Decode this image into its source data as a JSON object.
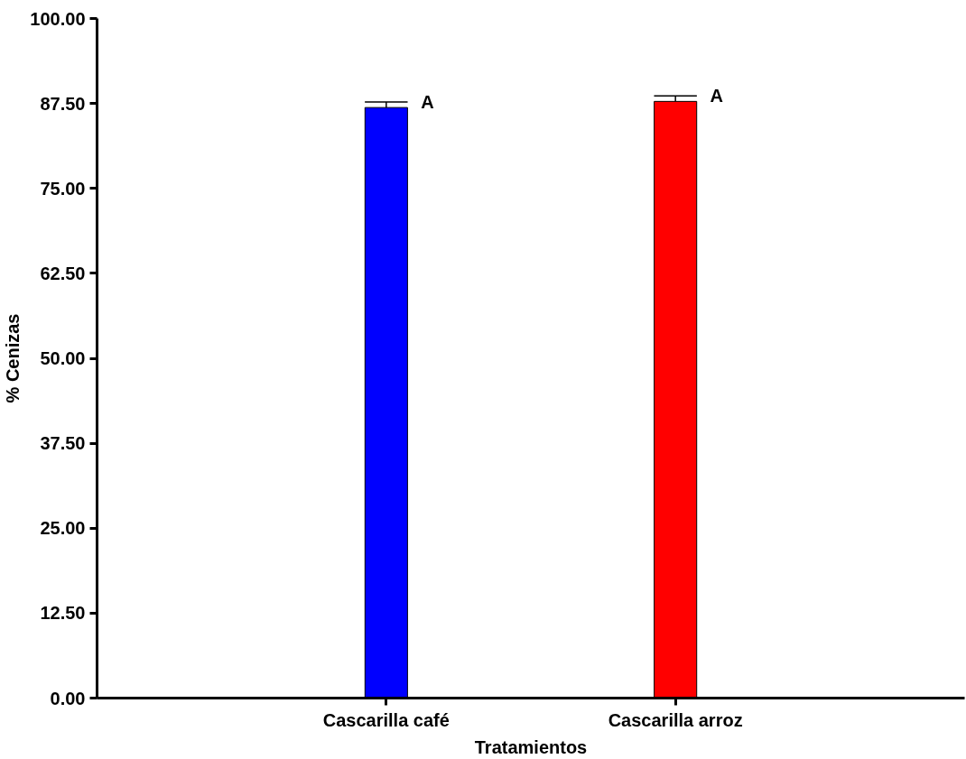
{
  "chart_data": {
    "type": "bar",
    "xlabel": "Tratamientos",
    "ylabel": "% Cenizas",
    "categories": [
      "Cascarilla café",
      "Cascarilla arroz"
    ],
    "values": [
      86.9,
      87.8
    ],
    "colors": [
      "#0000ff",
      "#ff0000"
    ],
    "errors": [
      0.8,
      0.8
    ],
    "ylim": [
      0,
      100
    ],
    "yticks": [
      {
        "value": 0,
        "label": "0.00"
      },
      {
        "value": 12.5,
        "label": "12.50"
      },
      {
        "value": 25,
        "label": "25.00"
      },
      {
        "value": 37.5,
        "label": "37.50"
      },
      {
        "value": 50,
        "label": "50.00"
      },
      {
        "value": 62.5,
        "label": "62.50"
      },
      {
        "value": 75,
        "label": "75.00"
      },
      {
        "value": 87.5,
        "label": "87.50"
      },
      {
        "value": 100,
        "label": "100.00"
      }
    ],
    "annotations": [
      {
        "text": "A",
        "x": "Cascarilla café",
        "y": 87.7
      },
      {
        "text": "A",
        "x": "Cascarilla arroz",
        "y": 88.6
      }
    ],
    "grid": false
  }
}
